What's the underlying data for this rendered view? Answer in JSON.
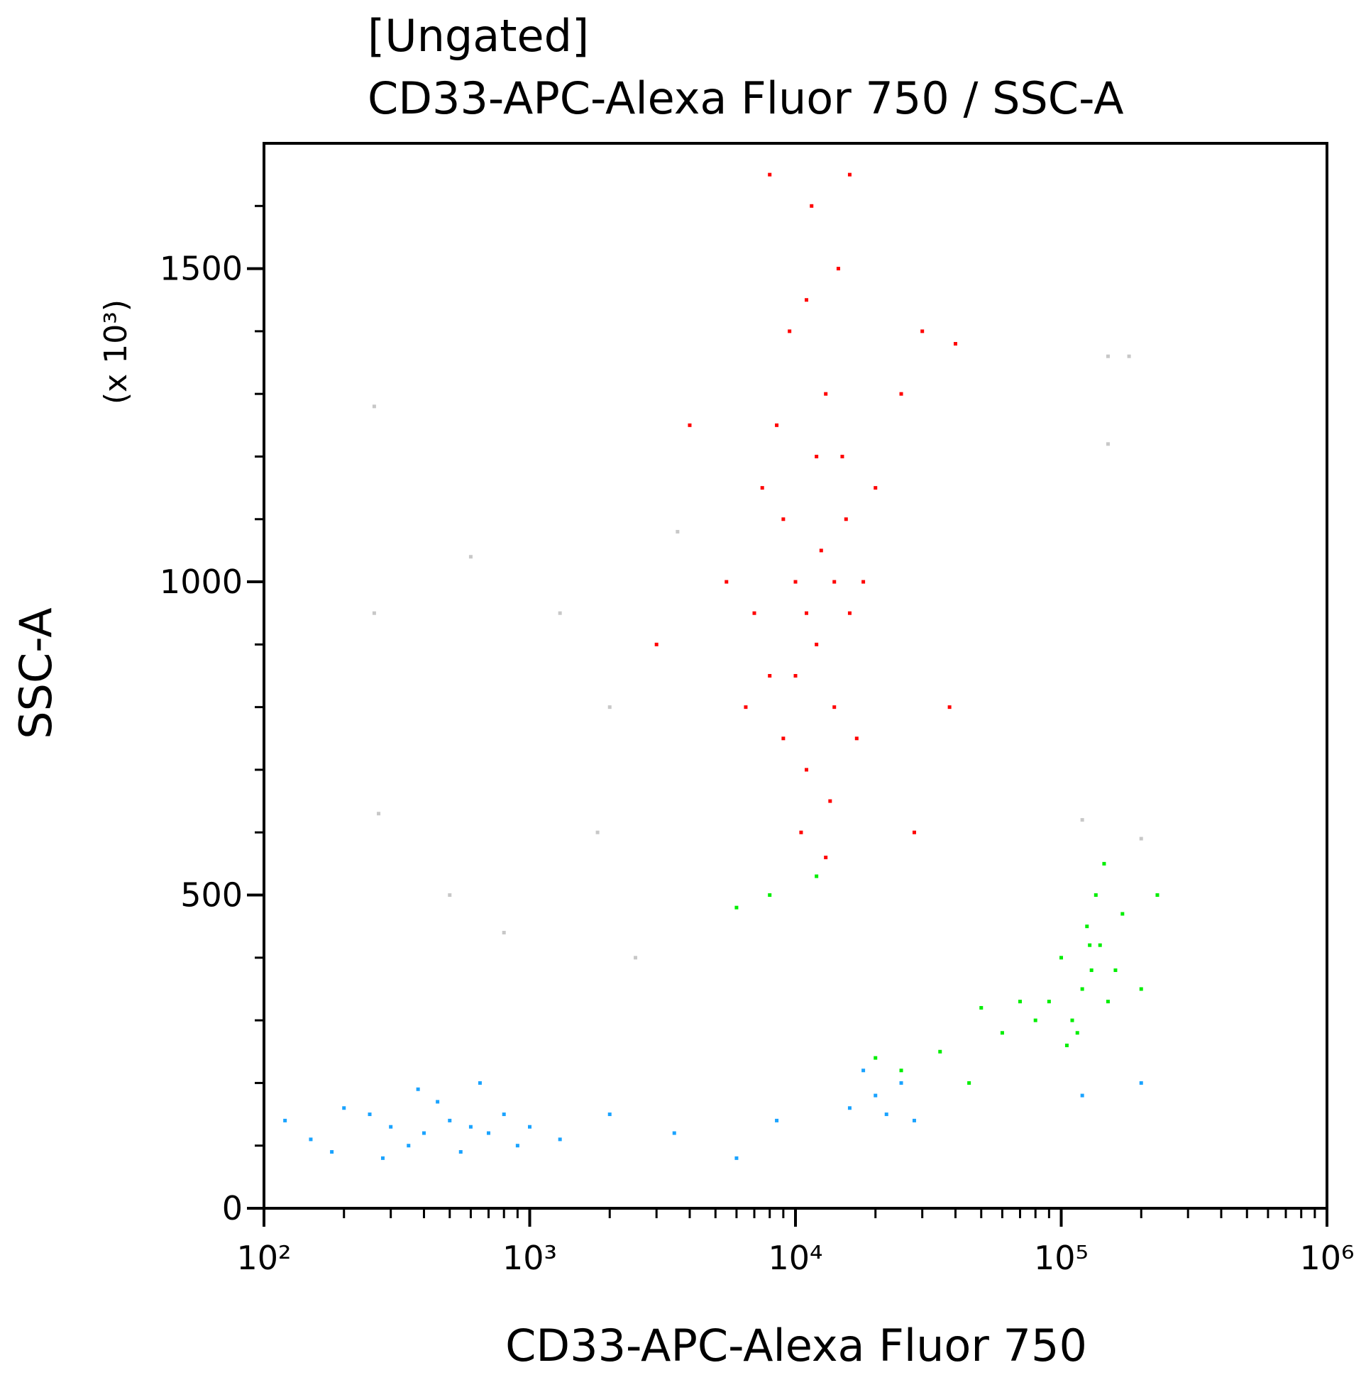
{
  "chart_data": {
    "type": "scatter",
    "title": "[Ungated]",
    "subtitle": "CD33-APC-Alexa Fluor 750 / SSC-A",
    "x_label": "CD33-APC-Alexa Fluor 750",
    "y_label": "SSC-A",
    "y_scale_note": "(x 10³)",
    "x_log": true,
    "xlim": [
      100,
      1000000
    ],
    "xticks": [
      {
        "value": 100,
        "label": "10²"
      },
      {
        "value": 1000,
        "label": "10³"
      },
      {
        "value": 10000,
        "label": "10⁴"
      },
      {
        "value": 100000,
        "label": "10⁵"
      },
      {
        "value": 1000000,
        "label": "10⁶"
      }
    ],
    "x_minor_ticks": [
      200,
      300,
      400,
      500,
      600,
      700,
      800,
      900,
      2000,
      3000,
      4000,
      5000,
      6000,
      7000,
      8000,
      9000,
      20000,
      30000,
      40000,
      50000,
      60000,
      70000,
      80000,
      90000,
      200000,
      300000,
      400000,
      500000,
      600000,
      700000,
      800000,
      900000
    ],
    "ylim": [
      0,
      1700
    ],
    "yticks": [
      0,
      500,
      1000,
      1500
    ],
    "y_minor_ticks": [
      100,
      200,
      300,
      400,
      600,
      700,
      800,
      900,
      1100,
      1200,
      1300,
      1400,
      1600
    ],
    "series": [
      {
        "color": "#c8c8c8",
        "x": [
          260,
          600,
          260,
          1300,
          2000,
          3600,
          270,
          1800,
          150000,
          180000,
          150000,
          200000,
          120000,
          500,
          2500,
          800
        ],
        "y": [
          1280,
          1040,
          950,
          950,
          800,
          1080,
          630,
          600,
          1360,
          1360,
          1220,
          590,
          620,
          500,
          400,
          440
        ]
      },
      {
        "color": "#ff0000",
        "x": [
          12000,
          10000,
          14000,
          9000,
          15000,
          11000,
          13000,
          8000,
          16000,
          12500,
          10500,
          7000,
          18000,
          9500,
          14500,
          11500,
          8500,
          17000,
          6500,
          20000,
          13500,
          7500,
          11000,
          15500,
          9000,
          12000,
          10000,
          14000,
          25000,
          5500,
          30000,
          8000,
          16000,
          4000,
          3000,
          40000,
          38000,
          28000,
          13000,
          11000
        ],
        "y": [
          900,
          1000,
          800,
          1100,
          1200,
          700,
          1300,
          850,
          950,
          1050,
          600,
          950,
          1000,
          1400,
          1500,
          1600,
          1250,
          750,
          800,
          1150,
          650,
          1150,
          1450,
          1100,
          750,
          1200,
          850,
          1000,
          1300,
          1000,
          1400,
          1650,
          1650,
          1250,
          900,
          1380,
          800,
          600,
          560,
          950
        ]
      },
      {
        "color": "#00ee00",
        "x": [
          130000,
          120000,
          140000,
          110000,
          150000,
          125000,
          100000,
          160000,
          135000,
          115000,
          170000,
          90000,
          200000,
          145000,
          80000,
          60000,
          50000,
          35000,
          25000,
          45000,
          70000,
          20000,
          8000,
          6000,
          12000,
          230000,
          105000,
          128000
        ],
        "y": [
          380,
          350,
          420,
          300,
          330,
          450,
          400,
          380,
          500,
          280,
          470,
          330,
          350,
          550,
          300,
          280,
          320,
          250,
          220,
          200,
          330,
          240,
          500,
          480,
          530,
          500,
          260,
          420
        ]
      },
      {
        "color": "#1aa3ff",
        "x": [
          300,
          250,
          400,
          500,
          350,
          200,
          600,
          450,
          150,
          120,
          700,
          800,
          900,
          280,
          550,
          380,
          650,
          180,
          1000,
          1300,
          2000,
          3500,
          6000,
          8500,
          20000,
          16000,
          25000,
          22000,
          28000,
          18000,
          120000,
          200000
        ],
        "y": [
          130,
          150,
          120,
          140,
          100,
          160,
          130,
          170,
          110,
          140,
          120,
          150,
          100,
          80,
          90,
          190,
          200,
          90,
          130,
          110,
          150,
          120,
          80,
          140,
          180,
          160,
          200,
          150,
          140,
          220,
          180,
          200
        ]
      }
    ]
  }
}
